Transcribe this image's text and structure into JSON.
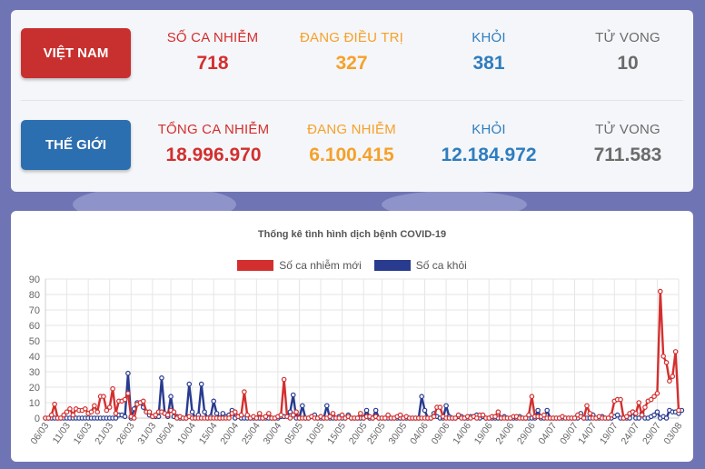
{
  "vietnam": {
    "label": "VIỆT NAM",
    "cases_label": "SỐ CA NHIỄM",
    "cases": "718",
    "treating_label": "ĐANG ĐIỀU TRỊ",
    "treating": "327",
    "recovered_label": "KHỎI",
    "recovered": "381",
    "deaths_label": "TỬ VONG",
    "deaths": "10"
  },
  "world": {
    "label": "THẾ GIỚI",
    "cases_label": "TỔNG CA NHIỄM",
    "cases": "18.996.970",
    "active_label": "ĐANG NHIỄM",
    "active": "6.100.415",
    "recovered_label": "KHỎI",
    "recovered": "12.184.972",
    "deaths_label": "TỬ VONG",
    "deaths": "711.583"
  },
  "colors": {
    "red": "#d32f2f",
    "orange": "#f5a12a",
    "blue": "#2e7dbf",
    "grey": "#6b6b6b",
    "btn_red": "#c8302f",
    "btn_blue": "#2c6fb0",
    "navy": "#283b8f"
  },
  "chart_data": {
    "type": "line",
    "title": "Thống kê tình hình dịch bệnh COVID-19",
    "legend_position": "top",
    "grid": true,
    "ylim": [
      0,
      90
    ],
    "yticks": [
      "0",
      "10",
      "20",
      "30",
      "40",
      "50",
      "60",
      "70",
      "80",
      "90"
    ],
    "xtick_labels": [
      "06/03",
      "11/03",
      "16/03",
      "21/03",
      "26/03",
      "31/03",
      "05/04",
      "10/04",
      "15/04",
      "20/04",
      "25/04",
      "30/04",
      "05/05",
      "10/05",
      "15/05",
      "20/05",
      "25/05",
      "30/05",
      "04/06",
      "09/06",
      "14/06",
      "19/06",
      "24/06",
      "29/06",
      "04/07",
      "09/07",
      "14/07",
      "19/07",
      "24/07",
      "29/07",
      "03/08"
    ],
    "series": [
      {
        "name": "Số ca nhiễm mới",
        "color": "#d32f2f",
        "values": [
          0,
          0,
          2,
          9,
          0,
          0,
          2,
          4,
          6,
          2,
          6,
          5,
          5,
          6,
          3,
          4,
          8,
          4,
          14,
          14,
          5,
          7,
          19,
          3,
          11,
          11,
          12,
          16,
          1,
          0,
          9,
          10,
          11,
          4,
          4,
          1,
          2,
          4,
          4,
          3,
          2,
          5,
          4,
          0,
          1,
          0,
          0,
          1,
          0,
          0,
          0,
          0,
          0,
          0,
          0,
          0,
          0,
          0,
          0,
          0,
          0,
          3,
          4,
          1,
          2,
          17,
          2,
          0,
          1,
          0,
          3,
          0,
          1,
          3,
          0,
          0,
          1,
          2,
          25,
          1,
          0,
          2,
          4,
          0,
          0,
          0,
          0,
          1,
          0,
          0,
          1,
          0,
          0,
          1,
          3,
          0,
          0,
          2,
          0,
          1,
          0,
          0,
          0,
          3,
          0,
          1,
          1,
          0,
          1,
          0,
          0,
          0,
          2,
          0,
          0,
          1,
          2,
          0,
          1,
          0,
          0,
          0,
          0,
          0,
          0,
          0,
          0,
          1,
          7,
          7,
          1,
          0,
          0,
          0,
          0,
          2,
          0,
          0,
          1,
          0,
          1,
          0,
          2,
          2,
          0,
          0,
          1,
          1,
          4,
          0,
          0,
          0,
          0,
          1,
          1,
          0,
          0,
          0,
          2,
          14,
          1,
          1,
          1,
          2,
          0,
          0,
          0,
          0,
          0,
          1,
          0,
          0,
          0,
          0,
          2,
          1,
          0,
          8,
          3,
          0,
          0,
          1,
          0,
          0,
          0,
          2,
          11,
          12,
          12,
          0,
          1,
          3,
          4,
          3,
          10,
          2,
          7,
          11,
          12,
          14,
          16,
          82,
          40,
          36,
          24,
          27,
          43,
          5
        ]
      },
      {
        "name": "Số ca khỏi",
        "color": "#283b8f",
        "values": [
          0,
          0,
          0,
          0,
          0,
          0,
          0,
          0,
          0,
          0,
          0,
          0,
          0,
          0,
          0,
          0,
          0,
          0,
          0,
          0,
          0,
          0,
          0,
          0,
          2,
          2,
          1,
          29,
          0,
          6,
          10,
          10,
          7,
          4,
          2,
          1,
          1,
          1,
          26,
          3,
          1,
          14,
          1,
          1,
          0,
          0,
          0,
          22,
          4,
          0,
          2,
          22,
          4,
          0,
          1,
          11,
          3,
          0,
          3,
          1,
          2,
          5,
          0,
          1,
          0,
          0,
          0,
          0,
          0,
          0,
          0,
          0,
          0,
          0,
          0,
          0,
          0,
          1,
          1,
          1,
          4,
          15,
          0,
          0,
          8,
          0,
          0,
          1,
          2,
          0,
          0,
          0,
          8,
          0,
          0,
          0,
          1,
          0,
          0,
          2,
          0,
          0,
          0,
          0,
          0,
          5,
          0,
          0,
          5,
          0,
          0,
          0,
          0,
          0,
          0,
          0,
          0,
          0,
          0,
          0,
          0,
          0,
          0,
          14,
          5,
          0,
          0,
          3,
          1,
          0,
          0,
          8,
          1,
          0,
          0,
          1,
          1,
          0,
          0,
          1,
          1,
          2,
          0,
          1,
          0,
          0,
          0,
          0,
          0,
          0,
          1,
          0,
          0,
          0,
          0,
          1,
          0,
          0,
          0,
          0,
          0,
          5,
          0,
          0,
          5,
          0,
          0,
          0,
          0,
          0,
          0,
          0,
          0,
          0,
          0,
          3,
          0,
          0,
          0,
          2,
          0,
          0,
          1,
          0,
          0,
          0,
          1,
          2,
          0,
          0,
          0,
          0,
          4,
          0,
          0,
          3,
          0,
          0,
          1,
          2,
          4,
          0,
          1,
          0,
          5,
          4,
          4,
          3,
          5
        ]
      }
    ]
  }
}
